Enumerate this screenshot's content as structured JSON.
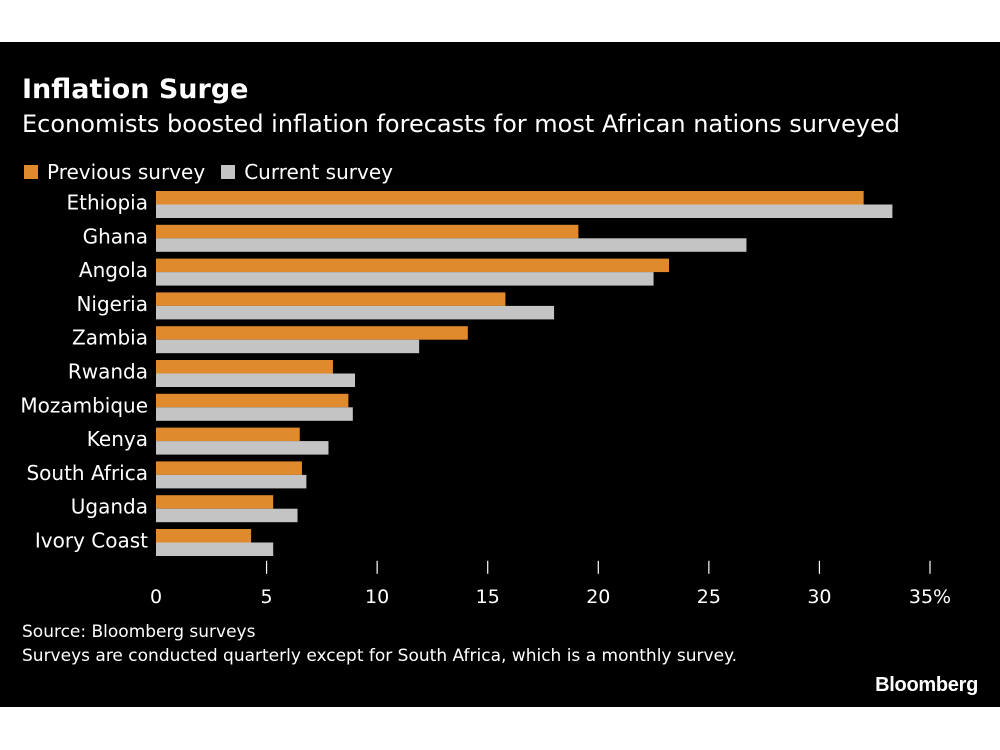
{
  "chart_data": {
    "type": "bar",
    "orientation": "horizontal",
    "title": "Inflation Surge",
    "subtitle": "Economists boosted inflation forecasts for most African nations surveyed",
    "categories": [
      "Ethiopia",
      "Ghana",
      "Angola",
      "Nigeria",
      "Zambia",
      "Rwanda",
      "Mozambique",
      "Kenya",
      "South Africa",
      "Uganda",
      "Ivory Coast"
    ],
    "series": [
      {
        "name": "Previous survey",
        "color": "#e08a2e",
        "values": [
          32.0,
          19.1,
          23.2,
          15.8,
          14.1,
          8.0,
          8.7,
          6.5,
          6.6,
          5.3,
          4.3
        ]
      },
      {
        "name": "Current survey",
        "color": "#c4c4c4",
        "values": [
          33.3,
          26.7,
          22.5,
          18.0,
          11.9,
          9.0,
          8.9,
          7.8,
          6.8,
          6.4,
          5.3
        ]
      }
    ],
    "xlim": [
      0,
      35
    ],
    "xticks": [
      0,
      5,
      10,
      15,
      20,
      25,
      30,
      35
    ],
    "xtick_labels": [
      "0",
      "5",
      "10",
      "15",
      "20",
      "25",
      "30",
      "35%"
    ],
    "grid": false,
    "legend_position": "top-left"
  },
  "footer": {
    "source": "Source: Bloomberg surveys",
    "note": "Surveys are conducted quarterly except for South Africa, which is a monthly survey.",
    "brand": "Bloomberg"
  },
  "colors": {
    "background": "#000000",
    "text": "#ffffff"
  }
}
